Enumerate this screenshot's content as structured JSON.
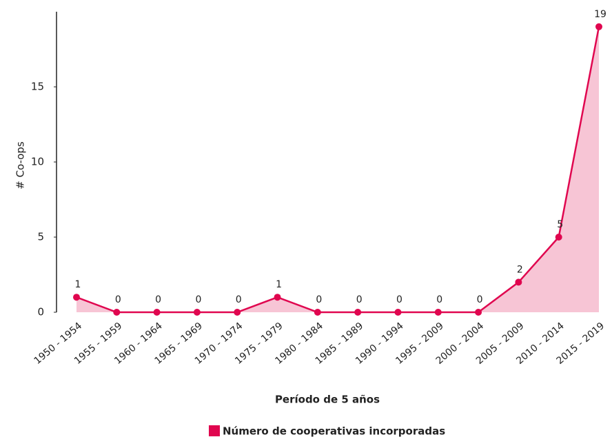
{
  "chart_data": {
    "type": "area",
    "x_label": "Período de 5 años",
    "y_label": "# Co-ops",
    "categories": [
      "1950 - 1954",
      "1955 - 1959",
      "1960 - 1964",
      "1965 - 1969",
      "1970 - 1974",
      "1975 - 1979",
      "1980 - 1984",
      "1985 - 1989",
      "1990 - 1994",
      "1995 - 2009",
      "2000 - 2004",
      "2005 - 2009",
      "2010 - 2014",
      "2015 - 2019"
    ],
    "series": [
      {
        "name": "Número de cooperativas incorporadas",
        "color": "#e0064f",
        "fill": "#f7c5d5",
        "values": [
          1,
          0,
          0,
          0,
          0,
          1,
          0,
          0,
          0,
          0,
          0,
          2,
          5,
          19
        ]
      }
    ],
    "ylim": [
      0,
      20
    ],
    "yticks": [
      0,
      5,
      10,
      15
    ],
    "data_labels": true,
    "legend": "bottom"
  }
}
